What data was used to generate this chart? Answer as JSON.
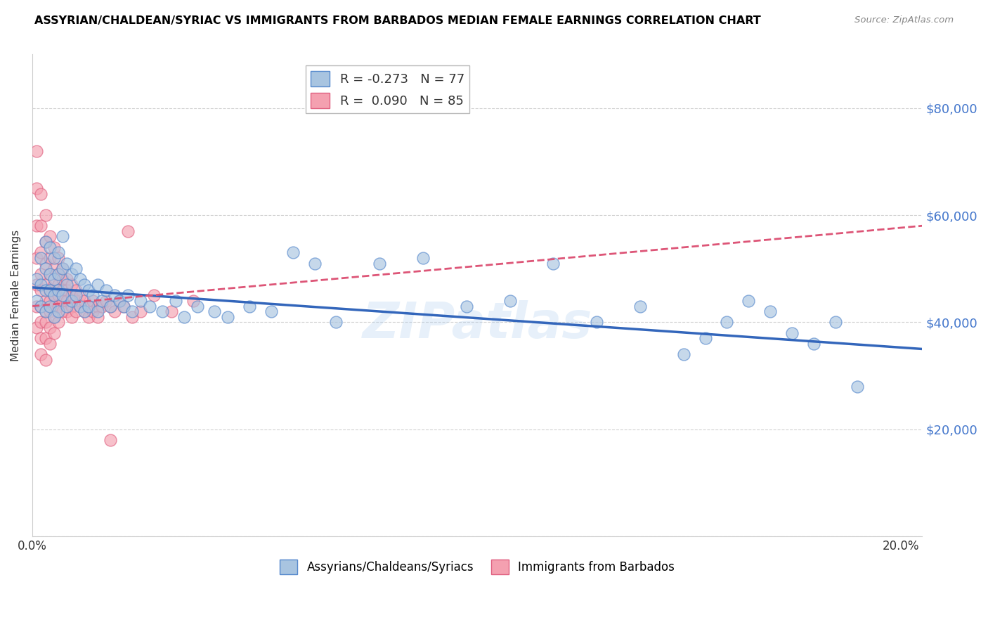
{
  "title": "ASSYRIAN/CHALDEAN/SYRIAC VS IMMIGRANTS FROM BARBADOS MEDIAN FEMALE EARNINGS CORRELATION CHART",
  "source": "Source: ZipAtlas.com",
  "ylabel": "Median Female Earnings",
  "xmin": 0.0,
  "xmax": 0.205,
  "ymin": 0,
  "ymax": 90000,
  "yticks": [
    0,
    20000,
    40000,
    60000,
    80000
  ],
  "ytick_labels": [
    "",
    "$20,000",
    "$40,000",
    "$60,000",
    "$80,000"
  ],
  "xticks": [
    0.0,
    0.05,
    0.1,
    0.15,
    0.2
  ],
  "xtick_labels": [
    "0.0%",
    "",
    "",
    "",
    "20.0%"
  ],
  "blue_R": -0.273,
  "blue_N": 77,
  "pink_R": 0.09,
  "pink_N": 85,
  "blue_color": "#A8C4E0",
  "pink_color": "#F4A0B0",
  "blue_edge_color": "#5588CC",
  "pink_edge_color": "#E06080",
  "blue_line_color": "#3366BB",
  "pink_line_color": "#DD5577",
  "legend_label_blue": "Assyrians/Chaldeans/Syriacs",
  "legend_label_pink": "Immigrants from Barbados",
  "watermark": "ZIPatlas",
  "blue_trend_x0": 0.0,
  "blue_trend_y0": 46500,
  "blue_trend_x1": 0.205,
  "blue_trend_y1": 35000,
  "pink_trend_x0": 0.0,
  "pink_trend_y0": 43000,
  "pink_trend_x1": 0.205,
  "pink_trend_y1": 58000,
  "blue_x": [
    0.001,
    0.001,
    0.002,
    0.002,
    0.002,
    0.003,
    0.003,
    0.003,
    0.003,
    0.004,
    0.004,
    0.004,
    0.004,
    0.005,
    0.005,
    0.005,
    0.005,
    0.006,
    0.006,
    0.006,
    0.006,
    0.007,
    0.007,
    0.007,
    0.008,
    0.008,
    0.008,
    0.009,
    0.009,
    0.01,
    0.01,
    0.011,
    0.011,
    0.012,
    0.012,
    0.013,
    0.013,
    0.014,
    0.015,
    0.015,
    0.016,
    0.017,
    0.018,
    0.019,
    0.02,
    0.021,
    0.022,
    0.023,
    0.025,
    0.027,
    0.03,
    0.033,
    0.035,
    0.038,
    0.042,
    0.045,
    0.05,
    0.055,
    0.06,
    0.065,
    0.07,
    0.08,
    0.09,
    0.1,
    0.11,
    0.12,
    0.13,
    0.14,
    0.15,
    0.155,
    0.16,
    0.165,
    0.17,
    0.175,
    0.18,
    0.185,
    0.19
  ],
  "blue_y": [
    48000,
    44000,
    52000,
    47000,
    43000,
    55000,
    50000,
    46000,
    42000,
    54000,
    49000,
    46000,
    43000,
    52000,
    48000,
    45000,
    41000,
    53000,
    49000,
    46000,
    42000,
    56000,
    50000,
    45000,
    51000,
    47000,
    43000,
    49000,
    44000,
    50000,
    45000,
    48000,
    43000,
    47000,
    42000,
    46000,
    43000,
    45000,
    47000,
    42000,
    44000,
    46000,
    43000,
    45000,
    44000,
    43000,
    45000,
    42000,
    44000,
    43000,
    42000,
    44000,
    41000,
    43000,
    42000,
    41000,
    43000,
    42000,
    53000,
    51000,
    40000,
    51000,
    52000,
    43000,
    44000,
    51000,
    40000,
    43000,
    34000,
    37000,
    40000,
    44000,
    42000,
    38000,
    36000,
    40000,
    28000
  ],
  "pink_x": [
    0.001,
    0.001,
    0.001,
    0.001,
    0.001,
    0.001,
    0.001,
    0.002,
    0.002,
    0.002,
    0.002,
    0.002,
    0.002,
    0.002,
    0.002,
    0.002,
    0.003,
    0.003,
    0.003,
    0.003,
    0.003,
    0.003,
    0.003,
    0.003,
    0.003,
    0.004,
    0.004,
    0.004,
    0.004,
    0.004,
    0.004,
    0.004,
    0.004,
    0.005,
    0.005,
    0.005,
    0.005,
    0.005,
    0.005,
    0.005,
    0.006,
    0.006,
    0.006,
    0.006,
    0.006,
    0.006,
    0.007,
    0.007,
    0.007,
    0.007,
    0.007,
    0.008,
    0.008,
    0.008,
    0.008,
    0.009,
    0.009,
    0.009,
    0.009,
    0.01,
    0.01,
    0.01,
    0.011,
    0.011,
    0.012,
    0.012,
    0.013,
    0.013,
    0.014,
    0.014,
    0.015,
    0.015,
    0.016,
    0.017,
    0.018,
    0.019,
    0.02,
    0.021,
    0.022,
    0.023,
    0.025,
    0.028,
    0.032,
    0.037,
    0.018
  ],
  "pink_y": [
    72000,
    65000,
    58000,
    52000,
    47000,
    43000,
    39000,
    64000,
    58000,
    53000,
    49000,
    46000,
    43000,
    40000,
    37000,
    34000,
    60000,
    55000,
    51000,
    47000,
    44000,
    42000,
    40000,
    37000,
    33000,
    56000,
    52000,
    49000,
    46000,
    44000,
    42000,
    39000,
    36000,
    54000,
    50000,
    47000,
    45000,
    43000,
    41000,
    38000,
    52000,
    49000,
    47000,
    45000,
    43000,
    40000,
    50000,
    48000,
    46000,
    44000,
    42000,
    48000,
    46000,
    44000,
    42000,
    47000,
    45000,
    43000,
    41000,
    46000,
    44000,
    42000,
    45000,
    43000,
    44000,
    42000,
    43000,
    41000,
    44000,
    42000,
    43000,
    41000,
    43000,
    44000,
    43000,
    42000,
    44000,
    43000,
    57000,
    41000,
    42000,
    45000,
    42000,
    44000,
    18000
  ]
}
